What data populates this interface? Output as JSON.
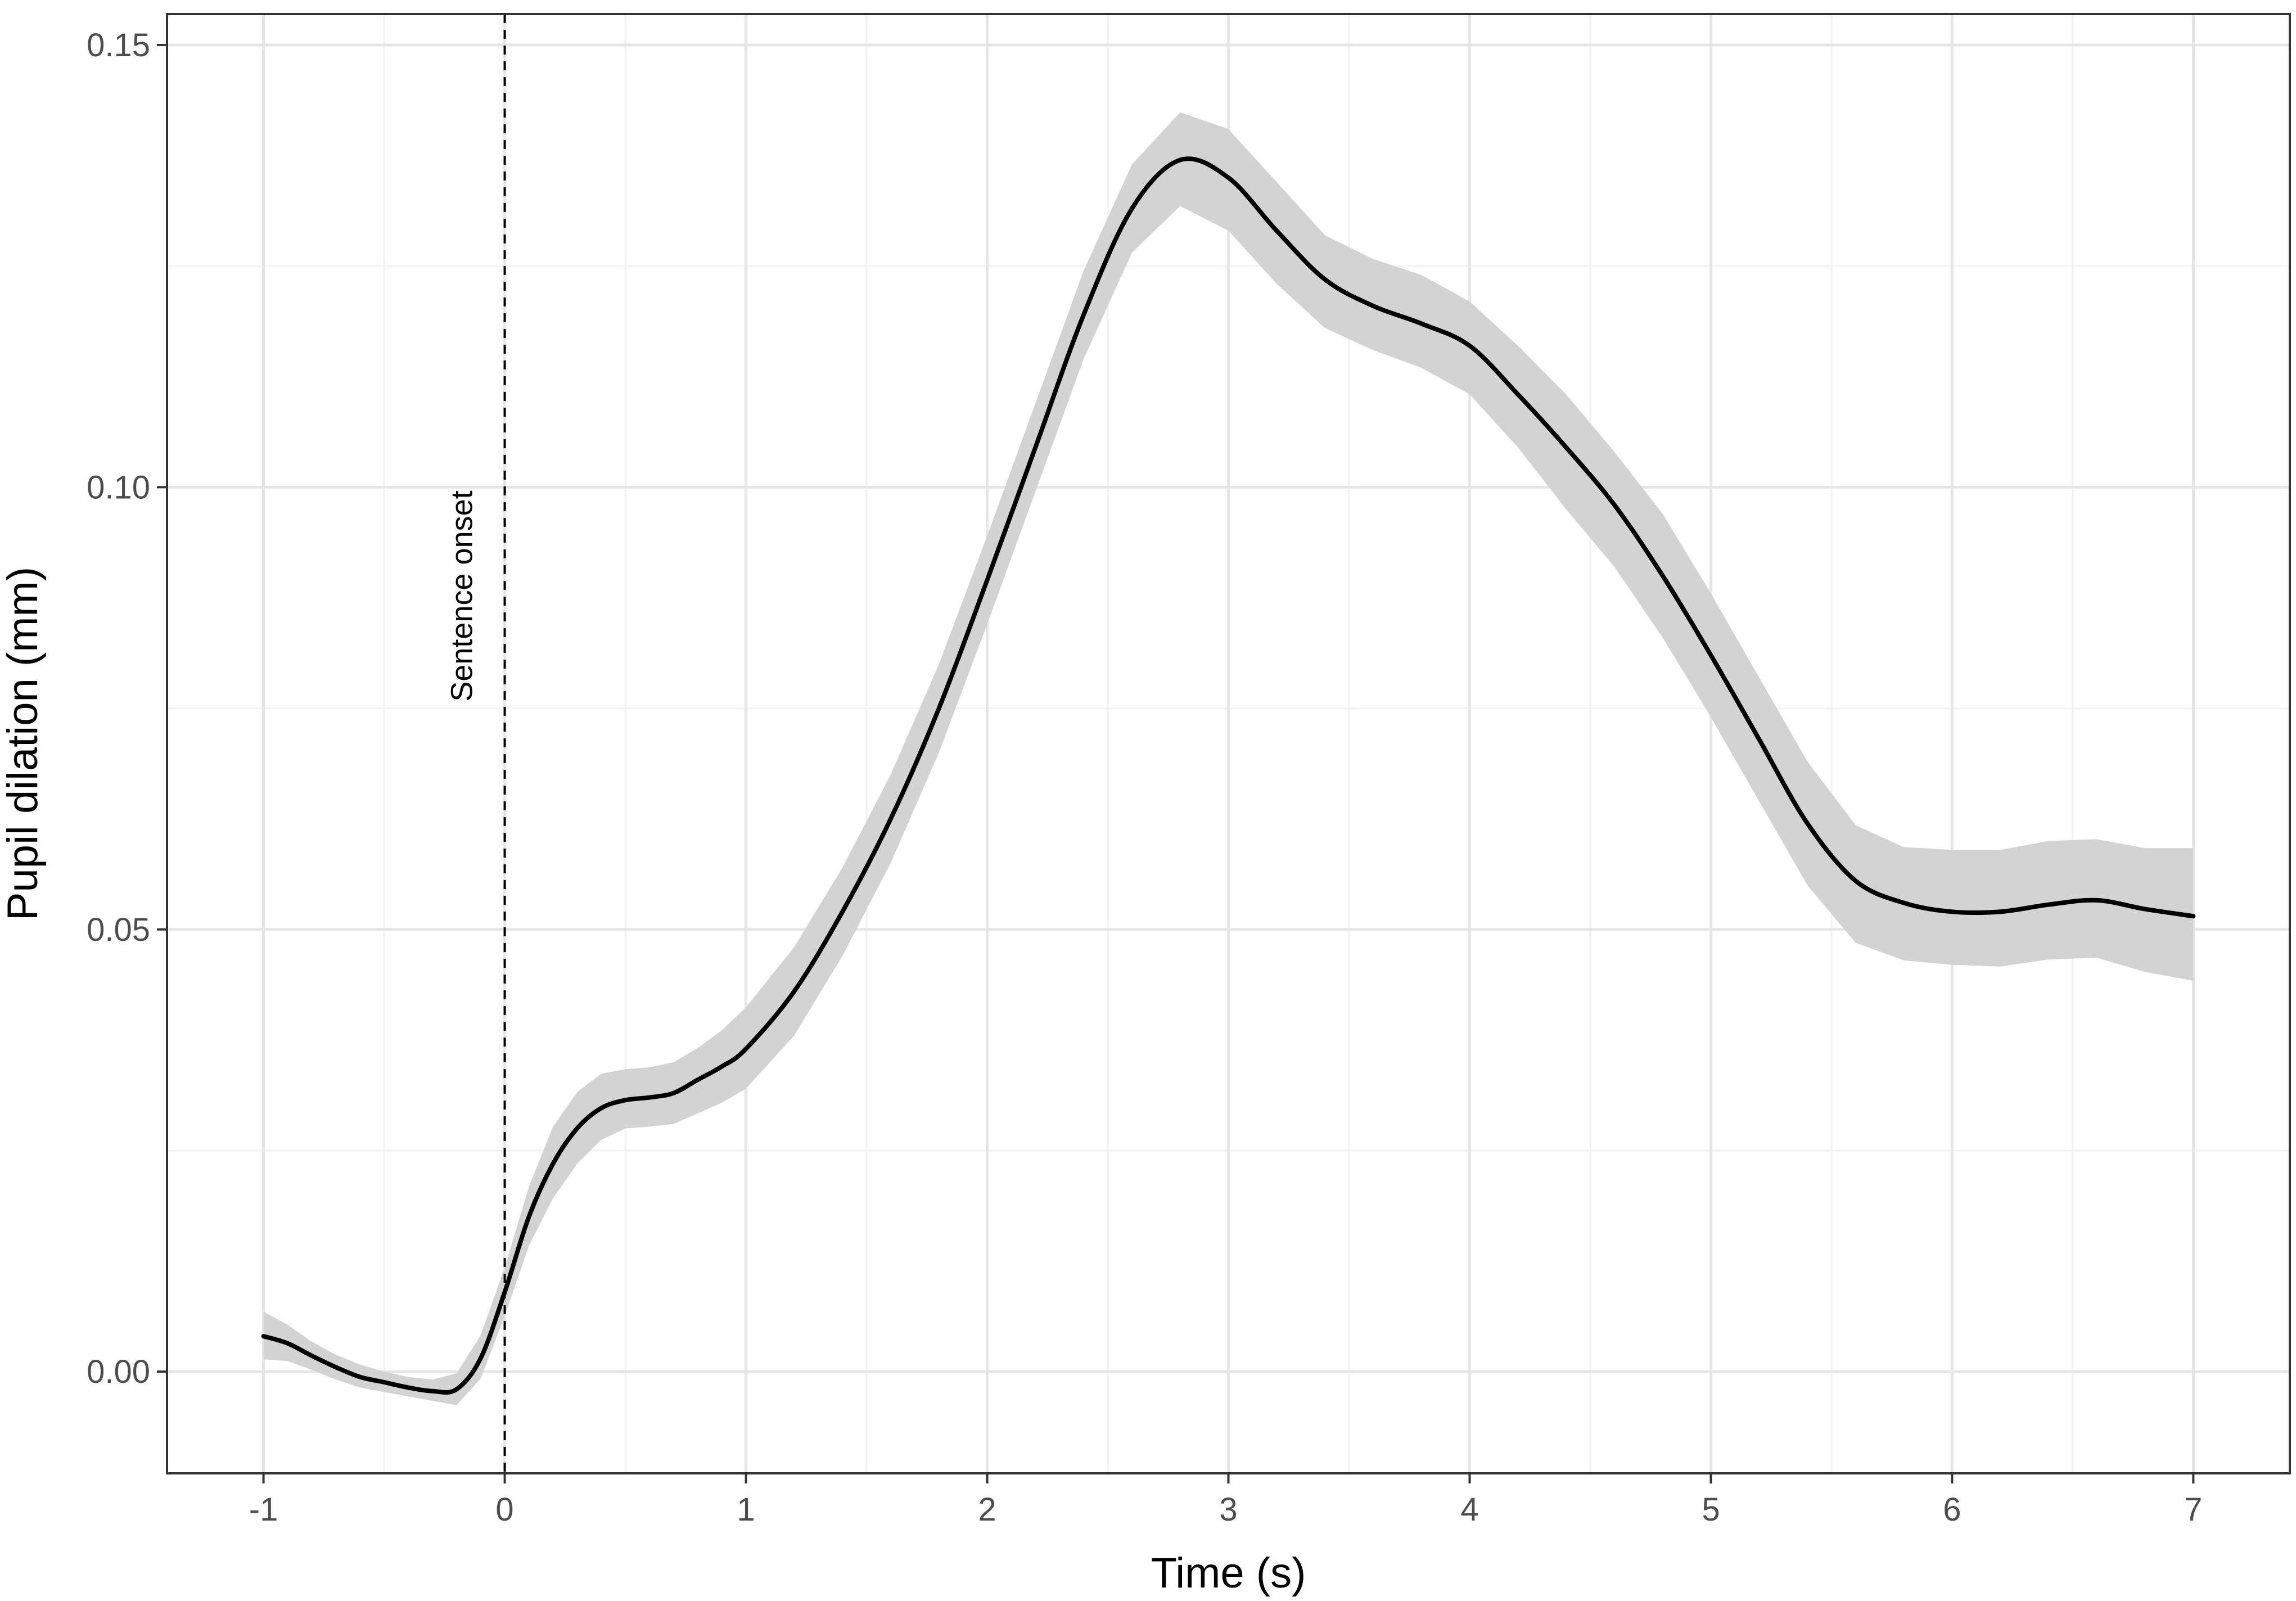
{
  "chart_data": {
    "type": "line",
    "xlabel": "Time (s)",
    "ylabel": "Pupil dilation (mm)",
    "xlim": [
      -1.4,
      7.4
    ],
    "ylim": [
      -0.0115,
      0.1535
    ],
    "x_ticks": [
      -1,
      0,
      1,
      2,
      3,
      4,
      5,
      6,
      7
    ],
    "x_tick_labels": [
      "-1",
      "0",
      "1",
      "2",
      "3",
      "4",
      "5",
      "6",
      "7"
    ],
    "x_minor_ticks": [
      -0.5,
      0.5,
      1.5,
      2.5,
      3.5,
      4.5,
      5.5,
      6.5
    ],
    "y_ticks": [
      0.0,
      0.05,
      0.1,
      0.15
    ],
    "y_tick_labels": [
      "0.00",
      "0.05",
      "0.10",
      "0.15"
    ],
    "y_minor_ticks": [
      0.025,
      0.075,
      0.125
    ],
    "grid": true,
    "vline": {
      "x": 0,
      "label": "Sentence onset",
      "style": "dashed"
    },
    "colors": {
      "line": "#000000",
      "ribbon": "#d3d3d3",
      "grid_major": "#e6e6e6",
      "grid_minor": "#f2f2f2",
      "frame": "#333333"
    },
    "series": [
      {
        "x": [
          -1.0,
          -0.9,
          -0.8,
          -0.7,
          -0.6,
          -0.5,
          -0.4,
          -0.3,
          -0.2,
          -0.1,
          0.0,
          0.1,
          0.2,
          0.3,
          0.4,
          0.5,
          0.6,
          0.7,
          0.8,
          0.9,
          1.0,
          1.2,
          1.4,
          1.6,
          1.8,
          2.0,
          2.2,
          2.4,
          2.6,
          2.8,
          3.0,
          3.2,
          3.4,
          3.6,
          3.8,
          4.0,
          4.2,
          4.4,
          4.6,
          4.8,
          5.0,
          5.2,
          5.4,
          5.6,
          5.8,
          6.0,
          6.2,
          6.4,
          6.6,
          6.8,
          7.0
        ],
        "y": [
          0.004,
          0.0032,
          0.0018,
          0.0005,
          -0.0006,
          -0.0012,
          -0.0018,
          -0.0022,
          -0.002,
          0.0015,
          0.009,
          0.0175,
          0.0235,
          0.0275,
          0.0298,
          0.0307,
          0.031,
          0.0315,
          0.033,
          0.0345,
          0.0365,
          0.043,
          0.052,
          0.0625,
          0.075,
          0.0895,
          0.1045,
          0.1195,
          0.1315,
          0.137,
          0.135,
          0.129,
          0.1235,
          0.1205,
          0.1185,
          0.116,
          0.1105,
          0.1045,
          0.098,
          0.09,
          0.081,
          0.0715,
          0.062,
          0.0555,
          0.053,
          0.052,
          0.052,
          0.0528,
          0.0533,
          0.0523,
          0.0515
        ],
        "ci_lower": [
          0.0014,
          0.0012,
          0.0002,
          -0.0009,
          -0.0018,
          -0.0023,
          -0.0028,
          -0.0033,
          -0.0038,
          -0.0008,
          0.0063,
          0.0142,
          0.0196,
          0.0235,
          0.0262,
          0.0275,
          0.0277,
          0.028,
          0.0292,
          0.0304,
          0.032,
          0.038,
          0.047,
          0.0575,
          0.07,
          0.0845,
          0.0995,
          0.1145,
          0.1265,
          0.1318,
          0.129,
          0.123,
          0.118,
          0.1155,
          0.1135,
          0.1105,
          0.1045,
          0.0975,
          0.091,
          0.083,
          0.074,
          0.0645,
          0.055,
          0.0485,
          0.0465,
          0.046,
          0.0458,
          0.0466,
          0.0468,
          0.0452,
          0.0442
        ],
        "ci_upper": [
          0.0068,
          0.0053,
          0.0034,
          0.0019,
          0.0008,
          0.0,
          -0.0006,
          -0.0009,
          -0.0002,
          0.0041,
          0.0118,
          0.0209,
          0.0277,
          0.0316,
          0.0337,
          0.0342,
          0.0344,
          0.035,
          0.0366,
          0.0386,
          0.0412,
          0.048,
          0.057,
          0.0675,
          0.08,
          0.0945,
          0.1095,
          0.1245,
          0.1365,
          0.1424,
          0.1405,
          0.1345,
          0.1285,
          0.1258,
          0.124,
          0.121,
          0.116,
          0.1105,
          0.104,
          0.097,
          0.088,
          0.0785,
          0.069,
          0.0618,
          0.0593,
          0.059,
          0.059,
          0.06,
          0.0602,
          0.0592,
          0.0592
        ]
      }
    ]
  }
}
